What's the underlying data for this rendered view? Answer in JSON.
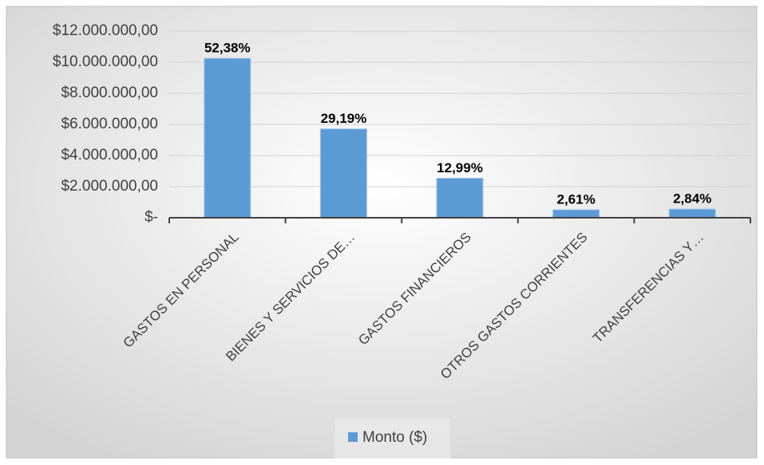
{
  "chart_data": {
    "type": "bar",
    "categories": [
      "GASTOS EN PERSONAL",
      "BIENES Y SERVICIOS DE…",
      "GASTOS FINANCIEROS",
      "OTROS GASTOS CORRIENTES",
      "TRANSFERENCIAS Y…"
    ],
    "series": [
      {
        "name": "Monto ($)",
        "color": "#5b9bd5",
        "values": [
          10250000,
          5710000,
          2540000,
          510000,
          556000
        ]
      }
    ],
    "percent_labels": [
      "52,38%",
      "29,19%",
      "12,99%",
      "2,61%",
      "2,84%"
    ],
    "ylim": [
      0,
      12000000
    ],
    "yticks": [
      {
        "value": 0,
        "label": "$-"
      },
      {
        "value": 2000000,
        "label": "$2.000.000,00"
      },
      {
        "value": 4000000,
        "label": "$4.000.000,00"
      },
      {
        "value": 6000000,
        "label": "$6.000.000,00"
      },
      {
        "value": 8000000,
        "label": "$8.000.000,00"
      },
      {
        "value": 10000000,
        "label": "$10.000.000,00"
      },
      {
        "value": 12000000,
        "label": "$12.000.000,00"
      }
    ],
    "grid": true,
    "legend": "bottom"
  }
}
